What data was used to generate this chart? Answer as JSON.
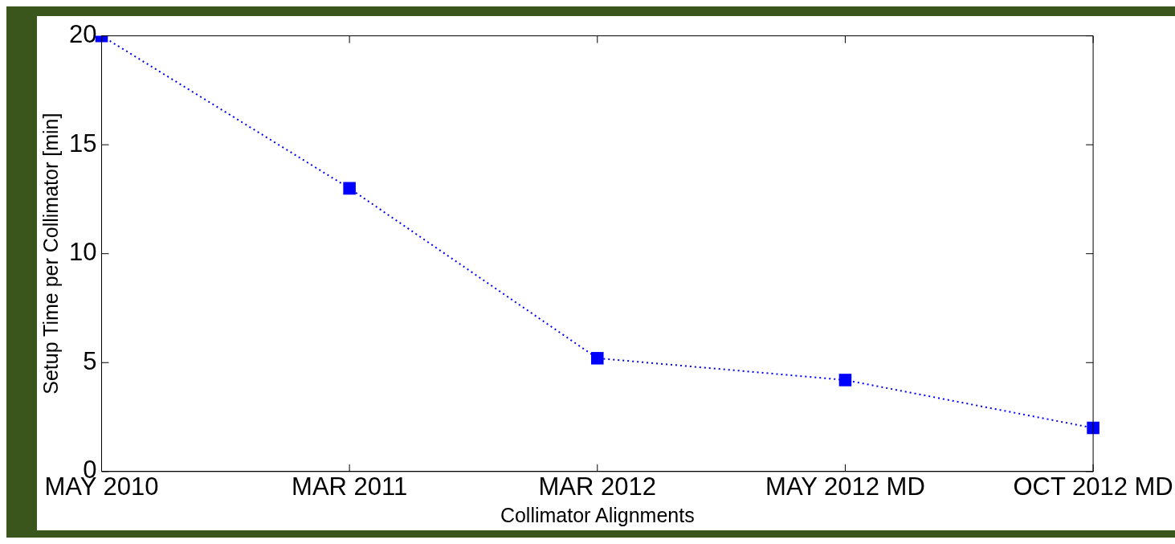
{
  "chart_data": {
    "type": "line",
    "xlabel": "Collimator Alignments",
    "ylabel": "Setup Time per Collimator [min]",
    "categories": [
      "MAY 2010",
      "MAR 2011",
      "MAR 2012",
      "MAY 2012 MD",
      "OCT 2012 MD"
    ],
    "series": [
      {
        "color": "#0000ff",
        "values": [
          20,
          13,
          5.2,
          4.2,
          2
        ]
      }
    ],
    "ylim": [
      0,
      20
    ],
    "yticks": [
      0,
      5,
      10,
      15,
      20
    ],
    "grid": false,
    "legend": false,
    "marker": "square",
    "line_style": "dotted"
  }
}
